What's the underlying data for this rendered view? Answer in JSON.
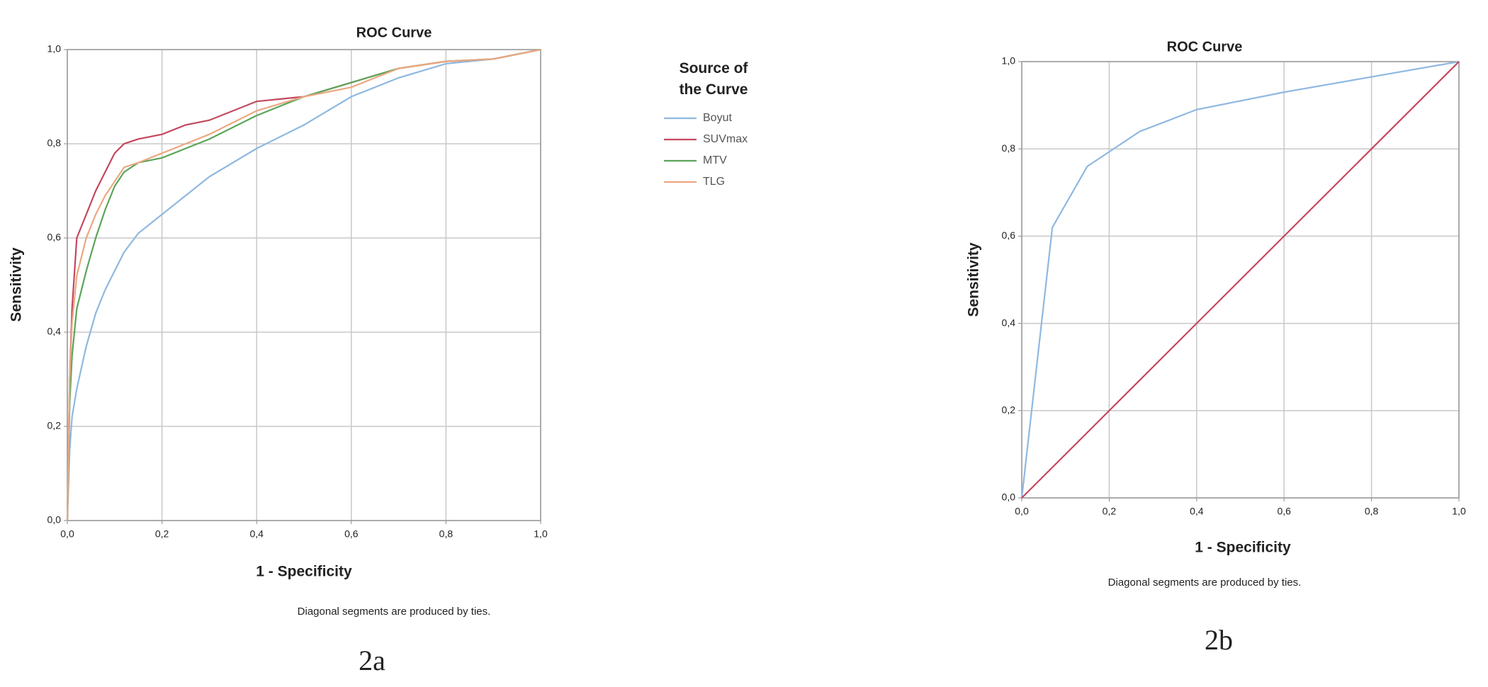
{
  "chart_data": [
    {
      "type": "line",
      "title": "ROC Curve",
      "x_label": "1 - Specificity",
      "y_label": "Sensitivity",
      "note": "Diagonal segments are produced by ties.",
      "caption": "2a",
      "legend_title": "Source of the Curve",
      "x": [
        0,
        0.005,
        0.01,
        0.02,
        0.04,
        0.06,
        0.08,
        0.1,
        0.12,
        0.15,
        0.2,
        0.25,
        0.3,
        0.4,
        0.5,
        0.6,
        0.7,
        0.8,
        0.9,
        1.0
      ],
      "series": [
        {
          "name": "Boyut",
          "color": "#8fb8e0",
          "values": [
            0,
            0.15,
            0.22,
            0.28,
            0.37,
            0.44,
            0.49,
            0.53,
            0.57,
            0.61,
            0.65,
            0.69,
            0.73,
            0.79,
            0.84,
            0.9,
            0.94,
            0.97,
            0.98,
            1
          ]
        },
        {
          "name": "SUVmax",
          "color": "#c4485e",
          "values": [
            0,
            0.3,
            0.45,
            0.6,
            0.65,
            0.7,
            0.74,
            0.78,
            0.8,
            0.81,
            0.82,
            0.84,
            0.85,
            0.89,
            0.9,
            0.93,
            0.96,
            0.975,
            0.98,
            1
          ]
        },
        {
          "name": "MTV",
          "color": "#5aa55a",
          "values": [
            0,
            0.25,
            0.35,
            0.45,
            0.53,
            0.6,
            0.66,
            0.71,
            0.74,
            0.76,
            0.77,
            0.79,
            0.81,
            0.86,
            0.9,
            0.93,
            0.96,
            0.975,
            0.98,
            1
          ]
        },
        {
          "name": "TLG",
          "color": "#eba882",
          "values": [
            0,
            0.3,
            0.42,
            0.52,
            0.6,
            0.65,
            0.69,
            0.72,
            0.75,
            0.76,
            0.78,
            0.8,
            0.82,
            0.87,
            0.9,
            0.92,
            0.96,
            0.975,
            0.98,
            1
          ]
        }
      ],
      "xlim": [
        0,
        1
      ],
      "ylim": [
        0,
        1
      ],
      "xticks": [
        {
          "value": 0,
          "label": "0,0"
        },
        {
          "value": 0.2,
          "label": "0,2"
        },
        {
          "value": 0.4,
          "label": "0,4"
        },
        {
          "value": 0.6,
          "label": "0,6"
        },
        {
          "value": 0.8,
          "label": "0,8"
        },
        {
          "value": 1,
          "label": "1,0"
        }
      ],
      "yticks": [
        {
          "value": 0,
          "label": "0,0"
        },
        {
          "value": 0.2,
          "label": "0,2"
        },
        {
          "value": 0.4,
          "label": "0,4"
        },
        {
          "value": 0.6,
          "label": "0,6"
        },
        {
          "value": 0.8,
          "label": "0,8"
        },
        {
          "value": 1,
          "label": "1,0"
        }
      ],
      "grid": true
    },
    {
      "type": "line",
      "title": "ROC Curve",
      "x_label": "1 - Specificity",
      "y_label": "Sensitivity",
      "note": "Diagonal segments are produced by ties.",
      "caption": "2b",
      "x": [
        0,
        0.07,
        0.15,
        0.27,
        0.4,
        0.6,
        0.8,
        1.0
      ],
      "series": [
        {
          "color": "#8fb8e0",
          "values": [
            0,
            0.62,
            0.76,
            0.84,
            0.89,
            0.93,
            0.965,
            1
          ]
        },
        {
          "color": "#c4485e",
          "values": [
            0,
            0.07,
            0.15,
            0.27,
            0.4,
            0.6,
            0.8,
            1.0
          ]
        }
      ],
      "xlim": [
        0,
        1
      ],
      "ylim": [
        0,
        1
      ],
      "xticks": [
        {
          "value": 0,
          "label": "0,0"
        },
        {
          "value": 0.2,
          "label": "0,2"
        },
        {
          "value": 0.4,
          "label": "0,4"
        },
        {
          "value": 0.6,
          "label": "0,6"
        },
        {
          "value": 0.8,
          "label": "0,8"
        },
        {
          "value": 1,
          "label": "1,0"
        }
      ],
      "yticks": [
        {
          "value": 0,
          "label": "0,0"
        },
        {
          "value": 0.2,
          "label": "0,2"
        },
        {
          "value": 0.4,
          "label": "0,4"
        },
        {
          "value": 0.6,
          "label": "0,6"
        },
        {
          "value": 0.8,
          "label": "0,8"
        },
        {
          "value": 1,
          "label": "1,0"
        }
      ],
      "grid": true
    }
  ]
}
